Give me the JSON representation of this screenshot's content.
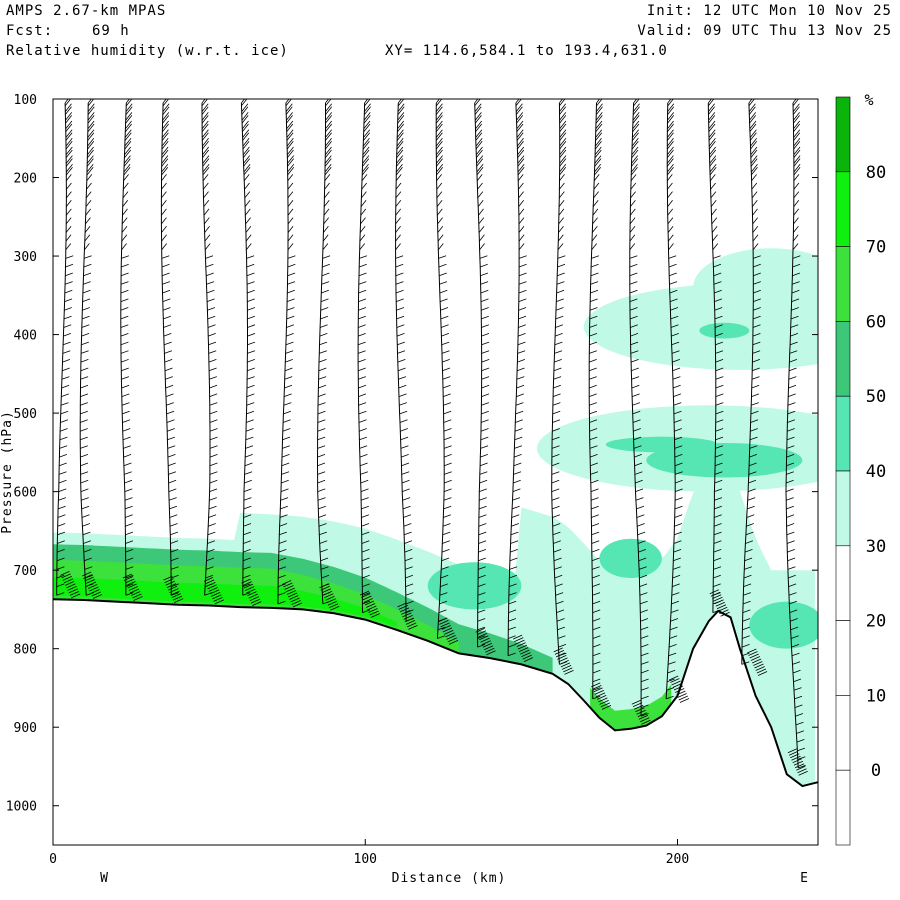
{
  "header": {
    "model": "AMPS 2.67-km MPAS",
    "fcst_label": "Fcst:",
    "fcst_value": "69 h",
    "field": "Relative humidity (w.r.t. ice)",
    "xy_range": "XY= 114.6,584.1 to 193.4,631.0",
    "init": "Init: 12 UTC Mon 10 Nov 25",
    "valid": "Valid: 09 UTC Thu 13 Nov 25"
  },
  "chart_data": {
    "type": "area",
    "xlabel": "Distance (km)",
    "ylabel": "Pressure (hPa)",
    "xlim": [
      0,
      245
    ],
    "ylim": [
      1050,
      100
    ],
    "x_ticks": [
      0,
      100,
      200
    ],
    "y_ticks": [
      100,
      200,
      300,
      400,
      500,
      600,
      700,
      800,
      900,
      1000
    ],
    "x_end_labels": {
      "left": "W",
      "right": "E"
    },
    "colorbar": {
      "unit": "%",
      "levels": [
        0,
        10,
        20,
        30,
        40,
        50,
        60,
        70,
        80
      ],
      "colors": [
        "#ffffff",
        "#ffffff",
        "#ffffff",
        "#ffffff",
        "#c0fae6",
        "#55e6b4",
        "#3cc878",
        "#3ce13c",
        "#0ff00f",
        "#0ab40a"
      ]
    },
    "terrain": {
      "x": [
        0,
        10,
        20,
        30,
        40,
        50,
        60,
        70,
        80,
        90,
        100,
        110,
        120,
        130,
        140,
        150,
        160,
        165,
        170,
        175,
        180,
        185,
        190,
        195,
        200,
        205,
        210,
        213,
        217,
        220,
        225,
        230,
        235,
        240,
        245
      ],
      "p": [
        737,
        738,
        740,
        742,
        744,
        745,
        747,
        748,
        750,
        755,
        763,
        776,
        790,
        806,
        812,
        820,
        832,
        845,
        866,
        888,
        904,
        902,
        898,
        886,
        860,
        800,
        765,
        752,
        760,
        800,
        860,
        900,
        960,
        975,
        970
      ]
    },
    "rh_regions": [
      {
        "class": "30-40",
        "desc": "moist layer above terrain and mid-level bands in east"
      },
      {
        "class": "40-50",
        "desc": "patches within moist layer"
      },
      {
        "class": "60-70",
        "desc": "near-surface layer west"
      },
      {
        "class": "70-80",
        "desc": "core of near-surface layer west"
      }
    ],
    "wind_columns_km": [
      3,
      10,
      23,
      36,
      49,
      61,
      74,
      86,
      99,
      111,
      124,
      136,
      148,
      161,
      173,
      186,
      198,
      211,
      223,
      236
    ],
    "grid": false
  }
}
